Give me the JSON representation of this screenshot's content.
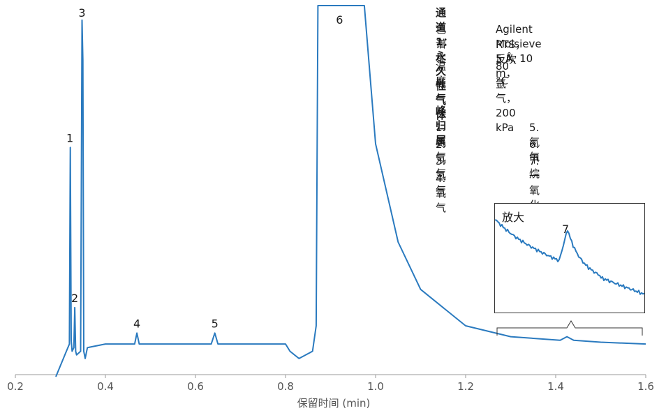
{
  "chart_data": {
    "type": "line",
    "title": "",
    "xlabel": "保留时间 (min)",
    "ylabel": "",
    "xlim": [
      0.2,
      1.6
    ],
    "ylim": [
      -2,
      100
    ],
    "grid": false,
    "xticks": [
      0.2,
      0.4,
      0.6,
      0.8,
      1.0,
      1.2,
      1.4,
      1.6
    ],
    "tick_labels": [
      "0.2",
      "0.4",
      "0.6",
      "0.8",
      "1.0",
      "1.2",
      "1.4",
      "1.6"
    ],
    "series": [
      {
        "color": "#2a7abf",
        "x": [
          0.29,
          0.31,
          0.32,
          0.322,
          0.324,
          0.326,
          0.33,
          0.332,
          0.334,
          0.336,
          0.345,
          0.348,
          0.35,
          0.352,
          0.355,
          0.36,
          0.4,
          0.465,
          0.47,
          0.475,
          0.48,
          0.635,
          0.643,
          0.65,
          0.7,
          0.8,
          0.81,
          0.83,
          0.86,
          0.868,
          0.872,
          0.875,
          0.97,
          0.975,
          1.0,
          1.05,
          1.1,
          1.2,
          1.3,
          1.41,
          1.425,
          1.44,
          1.5,
          1.6
        ],
        "y": [
          -2,
          4,
          7,
          61,
          8,
          5,
          6,
          17,
          5,
          4,
          5,
          96,
          85,
          5,
          3,
          6,
          7,
          7,
          10,
          7,
          7,
          7,
          10,
          7,
          7,
          7,
          5,
          3,
          5,
          12,
          100,
          100,
          100,
          100,
          62,
          35,
          22,
          12,
          9,
          8,
          9,
          8,
          7.5,
          7
        ]
      }
    ],
    "annotations": [
      {
        "label": "1",
        "x": 0.321,
        "y": 61
      },
      {
        "label": "2",
        "x": 0.332,
        "y": 17
      },
      {
        "label": "3",
        "x": 0.348,
        "y": 96
      },
      {
        "label": "4",
        "x": 0.47,
        "y": 10
      },
      {
        "label": "5",
        "x": 0.643,
        "y": 10
      },
      {
        "label": "6",
        "x": 0.92,
        "y": 100
      },
      {
        "label": "7",
        "x": 1.425,
        "y": 9
      }
    ]
  },
  "info": {
    "title": "通道 1：永久性气体",
    "rows": [
      {
        "key": "色谱柱",
        "value": "Agilent Molsieve 5 Å, 10 m，",
        "value2": "RTS，反吹"
      },
      {
        "key": "温度",
        "value": "80 °C"
      },
      {
        "key": "载气",
        "value": "氩气，200 kPa"
      }
    ],
    "peaks_title": "峰归属",
    "peaks": [
      "1. 氦气",
      "2. 氖气",
      "3. 氢气",
      "4. 氧气",
      "5. 氮气",
      "6. 甲烷",
      "7. 一氧化碳"
    ]
  },
  "zoom": {
    "title": "放大",
    "peak_label": "7"
  }
}
